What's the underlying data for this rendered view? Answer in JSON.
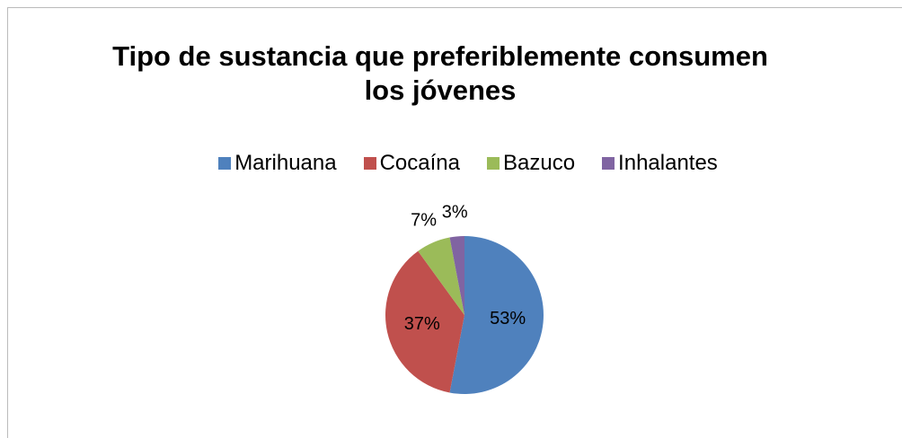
{
  "chart_data": {
    "type": "pie",
    "title": "Tipo de sustancia que preferiblemente consumen los jóvenes",
    "categories": [
      "Marihuana",
      "Cocaína",
      "Bazuco",
      "Inhalantes"
    ],
    "values": [
      53,
      37,
      7,
      3
    ],
    "value_labels": [
      "53%",
      "37%",
      "7%",
      "3%"
    ],
    "colors": [
      "#4f81bd",
      "#c0504d",
      "#9bbb59",
      "#8064a2"
    ],
    "legend": "top"
  }
}
